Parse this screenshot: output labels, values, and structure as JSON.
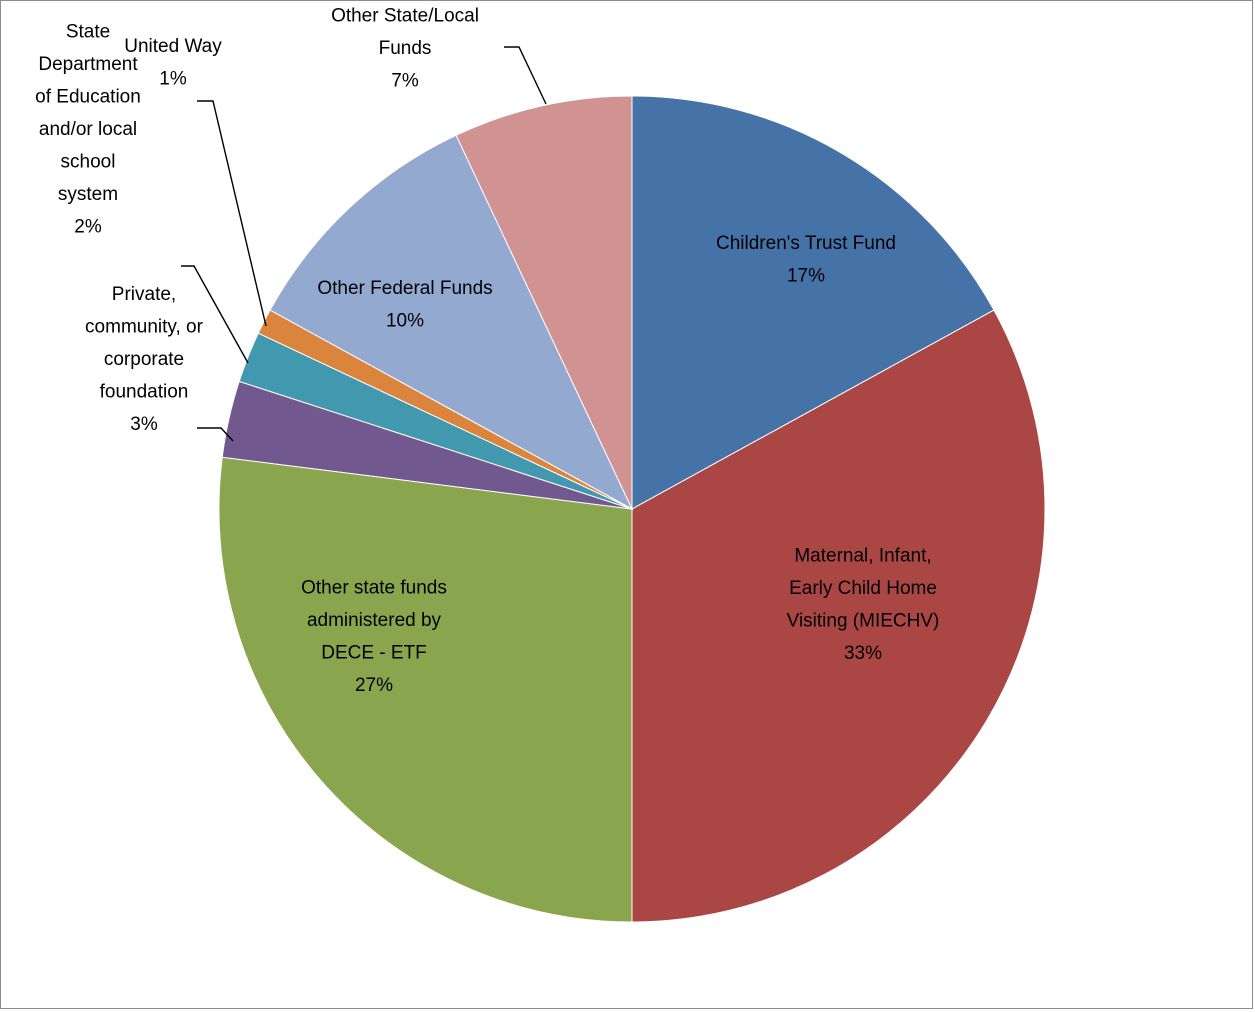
{
  "chart_data": {
    "type": "pie",
    "title": "",
    "start_angle_deg": 0,
    "direction": "clockwise",
    "slices": [
      {
        "label": "Children's Trust Fund",
        "label_lines": [
          "Children's Trust Fund",
          "17%"
        ],
        "value": 17,
        "percent_label": "17%",
        "color": "#4572A7",
        "label_placement": "inside"
      },
      {
        "label": "Maternal, Infant, Early Child Home Visiting (MIECHV)",
        "label_lines": [
          "Maternal, Infant,",
          "Early Child Home",
          "Visiting (MIECHV)",
          "33%"
        ],
        "value": 33,
        "percent_label": "33%",
        "color": "#AA4643",
        "label_placement": "inside"
      },
      {
        "label": "Other state funds administered by DECE - ETF",
        "label_lines": [
          "Other state funds",
          "administered by",
          "DECE - ETF",
          "27%"
        ],
        "value": 27,
        "percent_label": "27%",
        "color": "#89A54E",
        "label_placement": "inside"
      },
      {
        "label": "Private, community, or corporate foundation",
        "label_lines": [
          "Private,",
          "community, or",
          "corporate",
          "foundation",
          "3%"
        ],
        "value": 3,
        "percent_label": "3%",
        "color": "#71588F",
        "label_placement": "outside"
      },
      {
        "label": "State Department of Education and/or local school system",
        "label_lines": [
          "State",
          "Department",
          "of Education",
          "and/or local",
          "school",
          "system",
          "2%"
        ],
        "value": 2,
        "percent_label": "2%",
        "color": "#4198AF",
        "label_placement": "outside"
      },
      {
        "label": "United Way",
        "label_lines": [
          "United Way",
          "1%"
        ],
        "value": 1,
        "percent_label": "1%",
        "color": "#DB843D",
        "label_placement": "outside"
      },
      {
        "label": "Other Federal Funds",
        "label_lines": [
          "Other Federal Funds",
          "10%"
        ],
        "value": 10,
        "percent_label": "10%",
        "color": "#93A9CF",
        "label_placement": "inside"
      },
      {
        "label": "Other State/Local Funds",
        "label_lines": [
          "Other State/Local",
          "Funds",
          "7%"
        ],
        "value": 7,
        "percent_label": "7%",
        "color": "#D19392",
        "label_placement": "outside"
      }
    ]
  }
}
